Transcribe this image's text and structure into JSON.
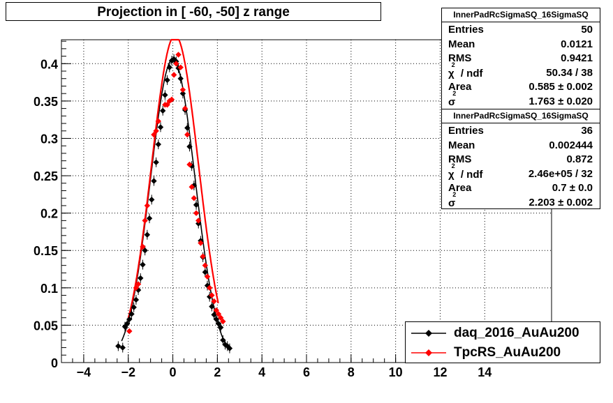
{
  "chart_data": {
    "type": "scatter",
    "title": "Projection in [ -60, -50] z range",
    "xlim": [
      -5,
      17
    ],
    "ylim": [
      0,
      0.432
    ],
    "grid": true,
    "x_ticks": [
      "−4",
      "−2",
      "0",
      "2",
      "4",
      "6",
      "8",
      "10",
      "12",
      "14"
    ],
    "x_tick_values": [
      -4,
      -2,
      0,
      2,
      4,
      6,
      8,
      10,
      12,
      14
    ],
    "y_ticks": [
      "0",
      "0.05",
      "0.1",
      "0.15",
      "0.2",
      "0.25",
      "0.3",
      "0.35",
      "0.4"
    ],
    "y_tick_values": [
      0,
      0.05,
      0.1,
      0.15,
      0.2,
      0.25,
      0.3,
      0.35,
      0.4
    ],
    "legend_position": "bottom-right",
    "series": [
      {
        "name": "daq_2016_AuAu200",
        "color": "#000000",
        "points": [
          [
            -2.45,
            0.022
          ],
          [
            -2.25,
            0.02
          ],
          [
            -2.15,
            0.048
          ],
          [
            -2.05,
            0.052
          ],
          [
            -1.95,
            0.058
          ],
          [
            -1.85,
            0.065
          ],
          [
            -1.75,
            0.074
          ],
          [
            -1.65,
            0.084
          ],
          [
            -1.55,
            0.097
          ],
          [
            -1.45,
            0.113
          ],
          [
            -1.35,
            0.131
          ],
          [
            -1.25,
            0.15
          ],
          [
            -1.15,
            0.171
          ],
          [
            -1.05,
            0.193
          ],
          [
            -0.95,
            0.218
          ],
          [
            -0.85,
            0.243
          ],
          [
            -0.75,
            0.268
          ],
          [
            -0.65,
            0.292
          ],
          [
            -0.55,
            0.315
          ],
          [
            -0.45,
            0.337
          ],
          [
            -0.35,
            0.358
          ],
          [
            -0.25,
            0.378
          ],
          [
            -0.15,
            0.395
          ],
          [
            -0.05,
            0.404
          ],
          [
            0.05,
            0.406
          ],
          [
            0.15,
            0.403
          ],
          [
            0.25,
            0.394
          ],
          [
            0.35,
            0.38
          ],
          [
            0.45,
            0.36
          ],
          [
            0.55,
            0.338
          ],
          [
            0.65,
            0.314
          ],
          [
            0.75,
            0.289
          ],
          [
            0.85,
            0.263
          ],
          [
            0.95,
            0.237
          ],
          [
            1.05,
            0.211
          ],
          [
            1.15,
            0.186
          ],
          [
            1.25,
            0.163
          ],
          [
            1.35,
            0.141
          ],
          [
            1.45,
            0.121
          ],
          [
            1.55,
            0.103
          ],
          [
            1.65,
            0.088
          ],
          [
            1.75,
            0.075
          ],
          [
            1.85,
            0.064
          ],
          [
            1.95,
            0.058
          ],
          [
            2.05,
            0.052
          ],
          [
            2.15,
            0.047
          ],
          [
            2.25,
            0.03
          ],
          [
            2.35,
            0.024
          ],
          [
            2.45,
            0.022
          ],
          [
            2.55,
            0.019
          ]
        ],
        "fit_sigma": 1.0,
        "fit_amplitude": 0.406
      },
      {
        "name": "TpcRS_AuAu200",
        "color": "#ff0000",
        "points": [
          [
            -1.95,
            0.042
          ],
          [
            -1.65,
            0.1
          ],
          [
            -1.55,
            0.105
          ],
          [
            -1.35,
            0.155
          ],
          [
            -1.25,
            0.19
          ],
          [
            -1.15,
            0.21
          ],
          [
            -0.85,
            0.305
          ],
          [
            -0.75,
            0.31
          ],
          [
            -0.65,
            0.323
          ],
          [
            -0.35,
            0.345
          ],
          [
            -0.25,
            0.345
          ],
          [
            -0.15,
            0.35
          ],
          [
            -0.05,
            0.352
          ],
          [
            0.05,
            0.385
          ],
          [
            0.15,
            0.4
          ],
          [
            0.25,
            0.412
          ],
          [
            0.35,
            0.395
          ],
          [
            0.45,
            0.365
          ],
          [
            0.55,
            0.34
          ],
          [
            0.65,
            0.305
          ],
          [
            0.75,
            0.265
          ],
          [
            0.85,
            0.235
          ],
          [
            0.95,
            0.22
          ],
          [
            1.05,
            0.2
          ],
          [
            1.15,
            0.19
          ],
          [
            1.25,
            0.16
          ],
          [
            1.35,
            0.142
          ],
          [
            1.45,
            0.13
          ],
          [
            1.55,
            0.115
          ],
          [
            1.65,
            0.1
          ],
          [
            1.75,
            0.09
          ],
          [
            1.85,
            0.082
          ],
          [
            1.95,
            0.07
          ],
          [
            2.05,
            0.065
          ],
          [
            2.15,
            0.06
          ],
          [
            2.25,
            0.055
          ]
        ],
        "fit_mean": 0.1,
        "fit_sigma": 1.05,
        "fit_amplitude": 0.438,
        "fit_range": [
          -2.0,
          2.05
        ]
      }
    ],
    "stats_boxes": [
      {
        "name": "InnerPadRcSigmaSQ_16SigmaSQ",
        "rows": [
          {
            "k": "Entries",
            "v": "50"
          },
          {
            "k": "Mean",
            "v": "0.0121"
          },
          {
            "k": "RMS",
            "v": "0.9421"
          },
          {
            "k": "χ",
            "sup": "2",
            "k2": " / ndf",
            "v": "50.34 / 38"
          },
          {
            "k": "Area",
            "v": "0.585 ± 0.002"
          },
          {
            "k": "σ",
            "sup": "2",
            "v": "1.763 ± 0.020"
          }
        ]
      },
      {
        "name": "InnerPadRcSigmaSQ_16SigmaSQ",
        "rows": [
          {
            "k": "Entries",
            "v": "36"
          },
          {
            "k": "Mean",
            "v": "0.002444"
          },
          {
            "k": "RMS",
            "v": "0.872"
          },
          {
            "k": "χ",
            "sup": "2",
            "k2": " / ndf",
            "v": "2.46e+05 / 32"
          },
          {
            "k": "Area",
            "v": "0.7 ± 0.0"
          },
          {
            "k": "σ",
            "sup": "2",
            "v": "2.203 ± 0.002"
          }
        ]
      }
    ]
  }
}
